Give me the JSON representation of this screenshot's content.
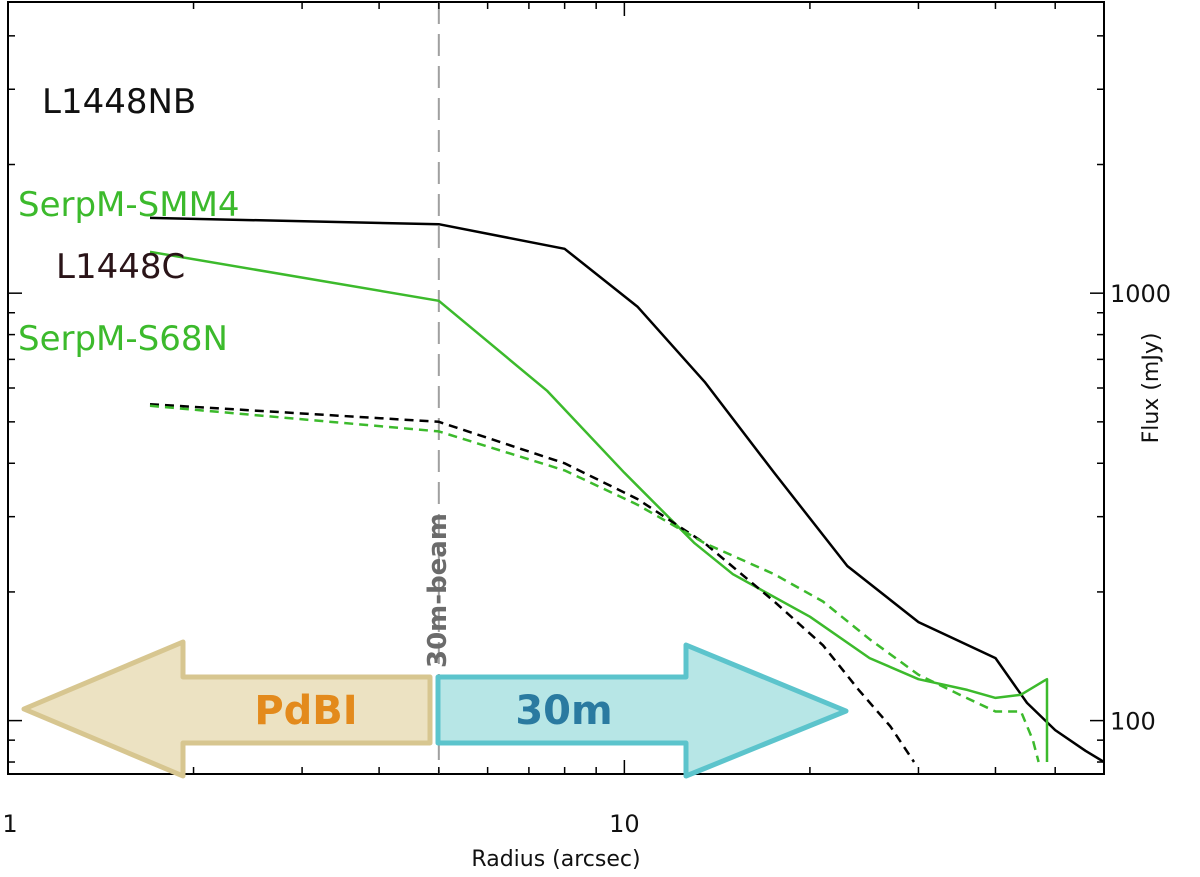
{
  "chart_data": {
    "type": "line",
    "xlabel": "Radius (arcsec)",
    "ylabel": "Flux (mJy)",
    "xscale": "log",
    "yscale": "log",
    "xlim": [
      1,
      60
    ],
    "ylim": [
      75,
      4800
    ],
    "xticks": [
      {
        "value": 1,
        "label": "1"
      },
      {
        "value": 10,
        "label": "10"
      }
    ],
    "yticks": [
      {
        "value": 100,
        "label": "100"
      },
      {
        "value": 1000,
        "label": "1000"
      }
    ],
    "series": [
      {
        "name": "L1448NB",
        "color": "#000000",
        "style": "solid",
        "x": [
          1.7,
          5.0,
          8.0,
          10.5,
          13.5,
          17.5,
          23.0,
          30.0,
          40.0,
          45.0,
          50.0,
          56.0,
          60.0
        ],
        "y": [
          1500,
          1450,
          1270,
          930,
          620,
          380,
          230,
          170,
          140,
          110,
          95,
          85,
          80
        ]
      },
      {
        "name": "SerpM-SMM4",
        "color": "#3cba2c",
        "style": "solid",
        "x": [
          1.7,
          5.0,
          7.5,
          10.0,
          13.0,
          15.0,
          20.0,
          25.0,
          30.0,
          36.0,
          40.0,
          44.0,
          48.0,
          48.5,
          48.5
        ],
        "y": [
          1250,
          960,
          590,
          380,
          260,
          220,
          175,
          140,
          125,
          118,
          113,
          115,
          124,
          125,
          80
        ]
      },
      {
        "name": "L1448C",
        "color": "#000000",
        "style": "dashed",
        "x": [
          1.7,
          5.0,
          8.0,
          10.5,
          13.5,
          17.5,
          21.0,
          24.0,
          27.0,
          29.5
        ],
        "y": [
          550,
          500,
          400,
          330,
          260,
          190,
          150,
          118,
          97,
          80
        ]
      },
      {
        "name": "SerpM-S68N",
        "color": "#3cba2c",
        "style": "dashed",
        "x": [
          1.7,
          5.0,
          8.0,
          10.5,
          13.5,
          17.5,
          21.0,
          25.0,
          30.0,
          35.0,
          40.0,
          44.0,
          46.0,
          47.0
        ],
        "y": [
          545,
          475,
          385,
          320,
          260,
          220,
          190,
          155,
          128,
          115,
          105,
          105,
          90,
          80
        ]
      }
    ],
    "series_labels": [
      "L1448NB",
      "SerpM-SMM4",
      "L1448C",
      "SerpM-S68N"
    ],
    "annotations": {
      "beam_line_x": 5.0,
      "beam_label": "30m-beam",
      "left_arrow_label": "PdBI",
      "right_arrow_label": "30m"
    },
    "grid": false
  },
  "colors": {
    "green": "#3cba2c",
    "black": "#000000",
    "label_dark": "#2a1418",
    "beam_gray": "#a0a0a0",
    "pdbi_fill": "#ece2c2",
    "pdbi_stroke": "#d7c690",
    "pdbi_text": "#e38a1c",
    "m30_fill": "#b7e6e6",
    "m30_stroke": "#5cc4cc",
    "m30_text": "#2a7aa0"
  }
}
